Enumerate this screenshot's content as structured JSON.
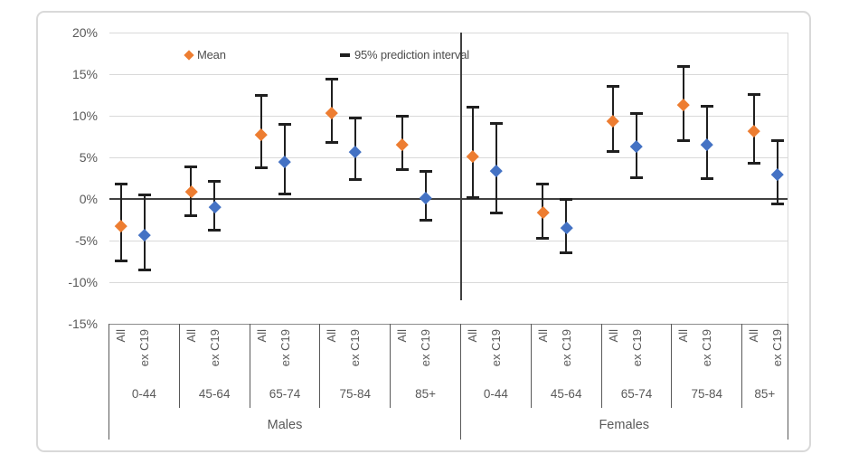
{
  "legend": {
    "mean_label": "Mean",
    "interval_label": "95% prediction interval"
  },
  "colors": {
    "mean_all": "#ED7D31",
    "mean_ex_c19": "#4472C4",
    "error_bar": "#1f1f1f",
    "gridline": "#d9d9d9",
    "category_axis": "#8c8c8c",
    "separator": "#595959",
    "zero_line": "#404040",
    "divider": "#404040",
    "text": "#595959"
  },
  "chart_data": {
    "type": "scatter",
    "title": "",
    "legend_entries": [
      "Mean",
      "95% prediction interval"
    ],
    "ylim": [
      -15,
      20
    ],
    "grid": true,
    "ytick_values": [
      20,
      15,
      10,
      5,
      0,
      -5,
      -10,
      -15
    ],
    "ytick_labels": [
      "20%",
      "15%",
      "10%",
      "5%",
      "0%",
      "-5%",
      "-10%",
      "-15%"
    ],
    "series_labels": [
      "All",
      "ex C19"
    ],
    "sections": [
      {
        "label": "Males",
        "groups": [
          {
            "age": "0-44",
            "all": {
              "mean": -3.2,
              "lo": -7.4,
              "hi": 1.8
            },
            "ex_c19": {
              "mean": -4.3,
              "lo": -8.5,
              "hi": 0.5
            }
          },
          {
            "age": "45-64",
            "all": {
              "mean": 0.9,
              "lo": -2.0,
              "hi": 3.9
            },
            "ex_c19": {
              "mean": -1.0,
              "lo": -3.8,
              "hi": 2.1
            }
          },
          {
            "age": "65-74",
            "all": {
              "mean": 7.7,
              "lo": 3.8,
              "hi": 12.4
            },
            "ex_c19": {
              "mean": 4.5,
              "lo": 0.6,
              "hi": 9.0
            }
          },
          {
            "age": "75-84",
            "all": {
              "mean": 10.4,
              "lo": 6.8,
              "hi": 14.4
            },
            "ex_c19": {
              "mean": 5.7,
              "lo": 2.3,
              "hi": 9.7
            }
          },
          {
            "age": "85+",
            "all": {
              "mean": 6.6,
              "lo": 3.5,
              "hi": 9.9
            },
            "ex_c19": {
              "mean": 0.1,
              "lo": -2.6,
              "hi": 3.3
            }
          }
        ]
      },
      {
        "label": "Females",
        "groups": [
          {
            "age": "0-44",
            "all": {
              "mean": 5.1,
              "lo": 0.2,
              "hi": 11.0
            },
            "ex_c19": {
              "mean": 3.4,
              "lo": -1.7,
              "hi": 9.1
            }
          },
          {
            "age": "45-64",
            "all": {
              "mean": -1.6,
              "lo": -4.7,
              "hi": 1.8
            },
            "ex_c19": {
              "mean": -3.5,
              "lo": -6.5,
              "hi": -0.1
            }
          },
          {
            "age": "65-74",
            "all": {
              "mean": 9.4,
              "lo": 5.7,
              "hi": 13.5
            },
            "ex_c19": {
              "mean": 6.3,
              "lo": 2.6,
              "hi": 10.3
            }
          },
          {
            "age": "75-84",
            "all": {
              "mean": 11.3,
              "lo": 7.0,
              "hi": 15.9
            },
            "ex_c19": {
              "mean": 6.6,
              "lo": 2.5,
              "hi": 11.1
            }
          },
          {
            "age": "85+",
            "all": {
              "mean": 8.2,
              "lo": 4.3,
              "hi": 12.6
            },
            "ex_c19": {
              "mean": 3.0,
              "lo": -0.6,
              "hi": 7.0
            }
          }
        ]
      }
    ]
  }
}
